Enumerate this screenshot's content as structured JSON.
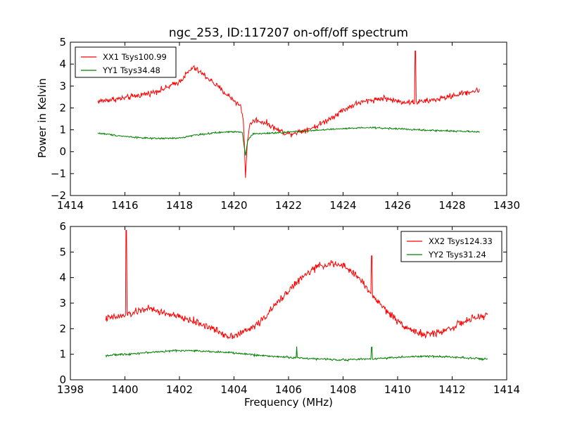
{
  "figure": {
    "title": "ngc_253, ID:117207 on-off/off spectrum",
    "ylabel": "Power in Kelvin",
    "xlabel": "Frequency (MHz)"
  },
  "chart_data": [
    {
      "type": "line",
      "xlim": [
        1414,
        1430
      ],
      "ylim": [
        -2,
        5
      ],
      "xticks": [
        1414,
        1416,
        1418,
        1420,
        1422,
        1424,
        1426,
        1428,
        1430
      ],
      "yticks": [
        -2,
        -1,
        0,
        1,
        2,
        3,
        4,
        5
      ],
      "grid": false,
      "legend_position": "top-left",
      "series": [
        {
          "name": "XX1 Tsys100.99",
          "color": "#ff0000",
          "noise": 0.12,
          "x_range": [
            1415,
            1429
          ],
          "anchors": [
            [
              1415.0,
              2.3
            ],
            [
              1416.0,
              2.45
            ],
            [
              1417.0,
              2.7
            ],
            [
              1417.5,
              2.9
            ],
            [
              1418.0,
              3.2
            ],
            [
              1418.3,
              3.6
            ],
            [
              1418.5,
              3.85
            ],
            [
              1418.8,
              3.6
            ],
            [
              1419.2,
              3.2
            ],
            [
              1419.6,
              2.75
            ],
            [
              1420.0,
              2.35
            ],
            [
              1420.25,
              2.05
            ],
            [
              1420.35,
              1.4
            ],
            [
              1420.42,
              -1.1
            ],
            [
              1420.5,
              0.6
            ],
            [
              1420.6,
              1.3
            ],
            [
              1420.8,
              1.45
            ],
            [
              1421.2,
              1.3
            ],
            [
              1421.6,
              1.0
            ],
            [
              1422.0,
              0.8
            ],
            [
              1422.5,
              0.95
            ],
            [
              1423.0,
              1.15
            ],
            [
              1423.5,
              1.5
            ],
            [
              1424.0,
              1.9
            ],
            [
              1424.5,
              2.2
            ],
            [
              1425.0,
              2.35
            ],
            [
              1425.5,
              2.45
            ],
            [
              1426.0,
              2.3
            ],
            [
              1426.5,
              2.25
            ],
            [
              1427.0,
              2.3
            ],
            [
              1427.5,
              2.4
            ],
            [
              1428.0,
              2.55
            ],
            [
              1428.5,
              2.7
            ],
            [
              1429.0,
              2.8
            ]
          ],
          "spikes": [
            [
              1426.65,
              4.6
            ]
          ]
        },
        {
          "name": "YY1 Tsys34.48",
          "color": "#008000",
          "noise": 0.035,
          "x_range": [
            1415,
            1429
          ],
          "anchors": [
            [
              1415.0,
              0.85
            ],
            [
              1416.0,
              0.7
            ],
            [
              1417.0,
              0.6
            ],
            [
              1418.0,
              0.62
            ],
            [
              1418.5,
              0.75
            ],
            [
              1419.0,
              0.82
            ],
            [
              1419.5,
              0.88
            ],
            [
              1420.0,
              0.92
            ],
            [
              1420.3,
              0.9
            ],
            [
              1420.42,
              -0.15
            ],
            [
              1420.5,
              0.5
            ],
            [
              1420.7,
              0.82
            ],
            [
              1421.5,
              0.85
            ],
            [
              1422.0,
              0.9
            ],
            [
              1423.0,
              0.98
            ],
            [
              1424.0,
              1.05
            ],
            [
              1425.0,
              1.1
            ],
            [
              1426.0,
              1.05
            ],
            [
              1427.0,
              0.98
            ],
            [
              1428.0,
              0.95
            ],
            [
              1429.0,
              0.9
            ]
          ],
          "spikes": []
        }
      ]
    },
    {
      "type": "line",
      "xlim": [
        1398,
        1414
      ],
      "ylim": [
        0,
        6
      ],
      "xticks": [
        1398,
        1400,
        1402,
        1404,
        1406,
        1408,
        1410,
        1412,
        1414
      ],
      "yticks": [
        0,
        1,
        2,
        3,
        4,
        5,
        6
      ],
      "grid": false,
      "legend_position": "top-right",
      "series": [
        {
          "name": "XX2 Tsys124.33",
          "color": "#ff0000",
          "noise": 0.13,
          "x_range": [
            1399.3,
            1413.3
          ],
          "anchors": [
            [
              1399.3,
              2.4
            ],
            [
              1400.0,
              2.5
            ],
            [
              1400.8,
              2.8
            ],
            [
              1401.5,
              2.6
            ],
            [
              1402.0,
              2.45
            ],
            [
              1402.5,
              2.3
            ],
            [
              1403.0,
              2.1
            ],
            [
              1403.5,
              1.85
            ],
            [
              1403.8,
              1.7
            ],
            [
              1404.2,
              1.8
            ],
            [
              1404.6,
              2.0
            ],
            [
              1405.0,
              2.3
            ],
            [
              1405.5,
              2.9
            ],
            [
              1406.0,
              3.5
            ],
            [
              1406.5,
              4.0
            ],
            [
              1407.0,
              4.4
            ],
            [
              1407.5,
              4.55
            ],
            [
              1408.0,
              4.45
            ],
            [
              1408.5,
              4.1
            ],
            [
              1409.0,
              3.4
            ],
            [
              1409.5,
              2.8
            ],
            [
              1410.0,
              2.3
            ],
            [
              1410.5,
              1.95
            ],
            [
              1411.0,
              1.75
            ],
            [
              1411.5,
              1.85
            ],
            [
              1412.0,
              2.05
            ],
            [
              1412.5,
              2.3
            ],
            [
              1413.3,
              2.55
            ]
          ],
          "spikes": [
            [
              1400.05,
              5.85
            ],
            [
              1409.05,
              4.85
            ]
          ]
        },
        {
          "name": "YY2 Tsys31.24",
          "color": "#008000",
          "noise": 0.035,
          "x_range": [
            1399.3,
            1413.3
          ],
          "anchors": [
            [
              1399.3,
              0.95
            ],
            [
              1400.0,
              1.0
            ],
            [
              1401.0,
              1.08
            ],
            [
              1402.0,
              1.15
            ],
            [
              1403.0,
              1.12
            ],
            [
              1404.0,
              1.05
            ],
            [
              1405.0,
              0.95
            ],
            [
              1406.0,
              0.88
            ],
            [
              1407.0,
              0.82
            ],
            [
              1408.0,
              0.78
            ],
            [
              1409.0,
              0.82
            ],
            [
              1410.0,
              0.88
            ],
            [
              1411.0,
              0.92
            ],
            [
              1412.0,
              0.9
            ],
            [
              1413.3,
              0.8
            ]
          ],
          "spikes": [
            [
              1406.3,
              1.3
            ],
            [
              1409.05,
              1.28
            ]
          ]
        }
      ]
    }
  ]
}
